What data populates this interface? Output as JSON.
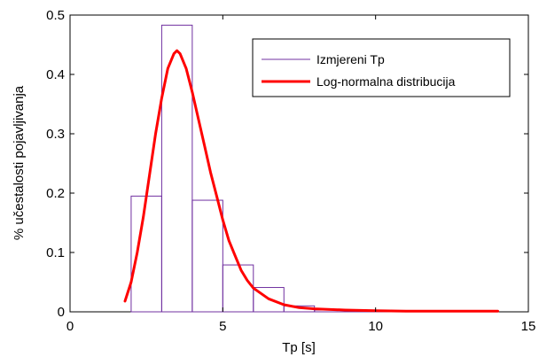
{
  "chart_data": {
    "type": "bar",
    "xlabel": "Tp [s]",
    "ylabel": "% učestalosti pojavljivanja",
    "xlim": [
      0,
      15
    ],
    "ylim": [
      0,
      0.5
    ],
    "xticks": [
      "0",
      "5",
      "10",
      "15"
    ],
    "yticks": [
      "0",
      "0.1",
      "0.2",
      "0.3",
      "0.4",
      "0.5"
    ],
    "grid": false,
    "legend_position": "top-right",
    "series": [
      {
        "name": "Izmjereni Tp",
        "type": "histogram",
        "color": "#7030a0",
        "bin_edges": [
          2,
          3,
          4,
          5,
          6,
          7,
          8,
          9,
          10,
          11,
          12,
          13,
          14
        ],
        "values": [
          0.195,
          0.483,
          0.188,
          0.079,
          0.041,
          0.01,
          0.003,
          0.001,
          0.0005,
          0.0005,
          0.0003,
          0.0003
        ]
      },
      {
        "name": "Log-normalna distribucija",
        "type": "line",
        "color": "#ff0000",
        "x": [
          1.8,
          2.0,
          2.2,
          2.4,
          2.6,
          2.8,
          3.0,
          3.2,
          3.4,
          3.5,
          3.6,
          3.8,
          4.0,
          4.2,
          4.4,
          4.6,
          4.8,
          5.0,
          5.2,
          5.4,
          5.6,
          5.8,
          6.0,
          6.5,
          7.0,
          7.5,
          8.0,
          9.0,
          10.0,
          11.0,
          12.0,
          13.0,
          14.0
        ],
        "y": [
          0.018,
          0.05,
          0.1,
          0.16,
          0.23,
          0.3,
          0.36,
          0.41,
          0.435,
          0.44,
          0.435,
          0.41,
          0.37,
          0.325,
          0.28,
          0.235,
          0.195,
          0.155,
          0.12,
          0.095,
          0.07,
          0.053,
          0.04,
          0.022,
          0.012,
          0.007,
          0.005,
          0.003,
          0.002,
          0.001,
          0.001,
          0.001,
          0.001
        ]
      }
    ]
  }
}
